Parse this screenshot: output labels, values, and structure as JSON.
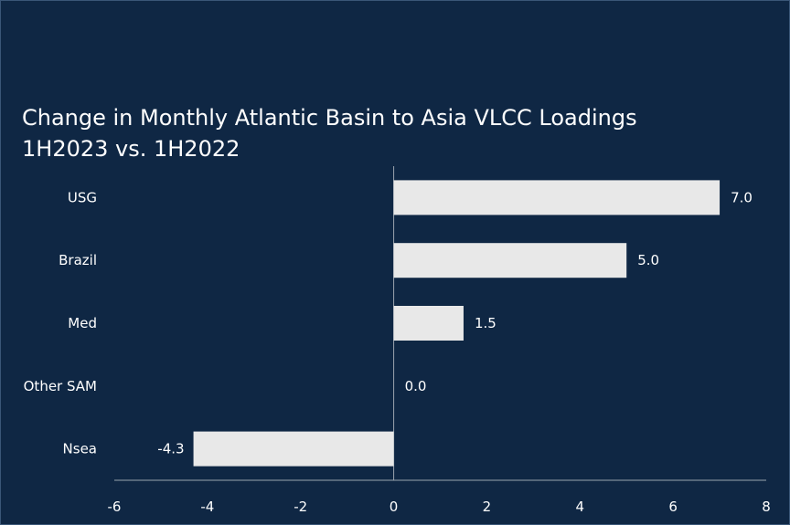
{
  "chart_data": {
    "type": "bar",
    "orientation": "horizontal",
    "title": "Change in Monthly Atlantic Basin to Asia VLCC Loadings",
    "subtitle": "1H2023 vs. 1H2022",
    "categories": [
      "USG",
      "Brazil",
      "Med",
      "Other SAM",
      "Nsea"
    ],
    "values": [
      7.0,
      5.0,
      1.5,
      0.0,
      -4.3
    ],
    "data_labels": [
      "7.0",
      "5.0",
      "1.5",
      "0.0",
      "-4.3"
    ],
    "xlim": [
      -6,
      8
    ],
    "xticks": [
      -6,
      -4,
      -2,
      0,
      2,
      4,
      6,
      8
    ],
    "xtick_labels": [
      "-6",
      "-4",
      "-2",
      "0",
      "2",
      "4",
      "6",
      "8"
    ],
    "xlabel": "",
    "ylabel": "",
    "grid": false,
    "legend": "none"
  },
  "colors": {
    "background": "#0f2744",
    "bar": "#e8e8e8",
    "text": "#ffffff",
    "axis": "#9aa4ae"
  }
}
